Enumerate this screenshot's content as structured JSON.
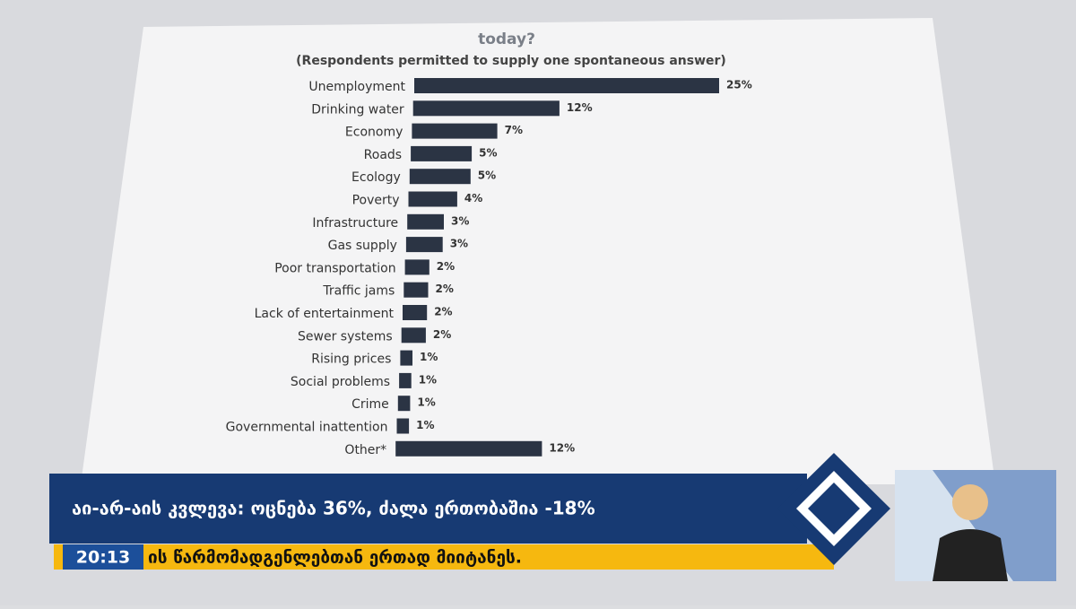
{
  "chart_data": {
    "type": "bar",
    "orientation": "horizontal",
    "title": "today?",
    "subtitle": "(Respondents permitted to supply one spontaneous answer)",
    "categories": [
      "Unemployment",
      "Drinking water",
      "Economy",
      "Roads",
      "Ecology",
      "Poverty",
      "Infrastructure",
      "Gas supply",
      "Poor transportation",
      "Traffic jams",
      "Lack of entertainment",
      "Sewer systems",
      "Rising prices",
      "Social problems",
      "Crime",
      "Governmental inattention",
      "Other*"
    ],
    "values": [
      25,
      12,
      7,
      5,
      5,
      4,
      3,
      3,
      2,
      2,
      2,
      2,
      1,
      1,
      1,
      1,
      12
    ],
    "value_labels": [
      "25%",
      "12%",
      "7%",
      "5%",
      "5%",
      "4%",
      "3%",
      "3%",
      "2%",
      "2%",
      "2%",
      "2%",
      "1%",
      "1%",
      "1%",
      "1%",
      "12%"
    ],
    "color": "#2b3444"
  },
  "broadcast": {
    "headline": "აი-არ-აის კვლევა: ოცნება 36%, ძალა ერთობაშია -18%",
    "ticker": "ის წარმომადგენლებთან ერთად მიიტანეს.",
    "time": "20:13"
  }
}
